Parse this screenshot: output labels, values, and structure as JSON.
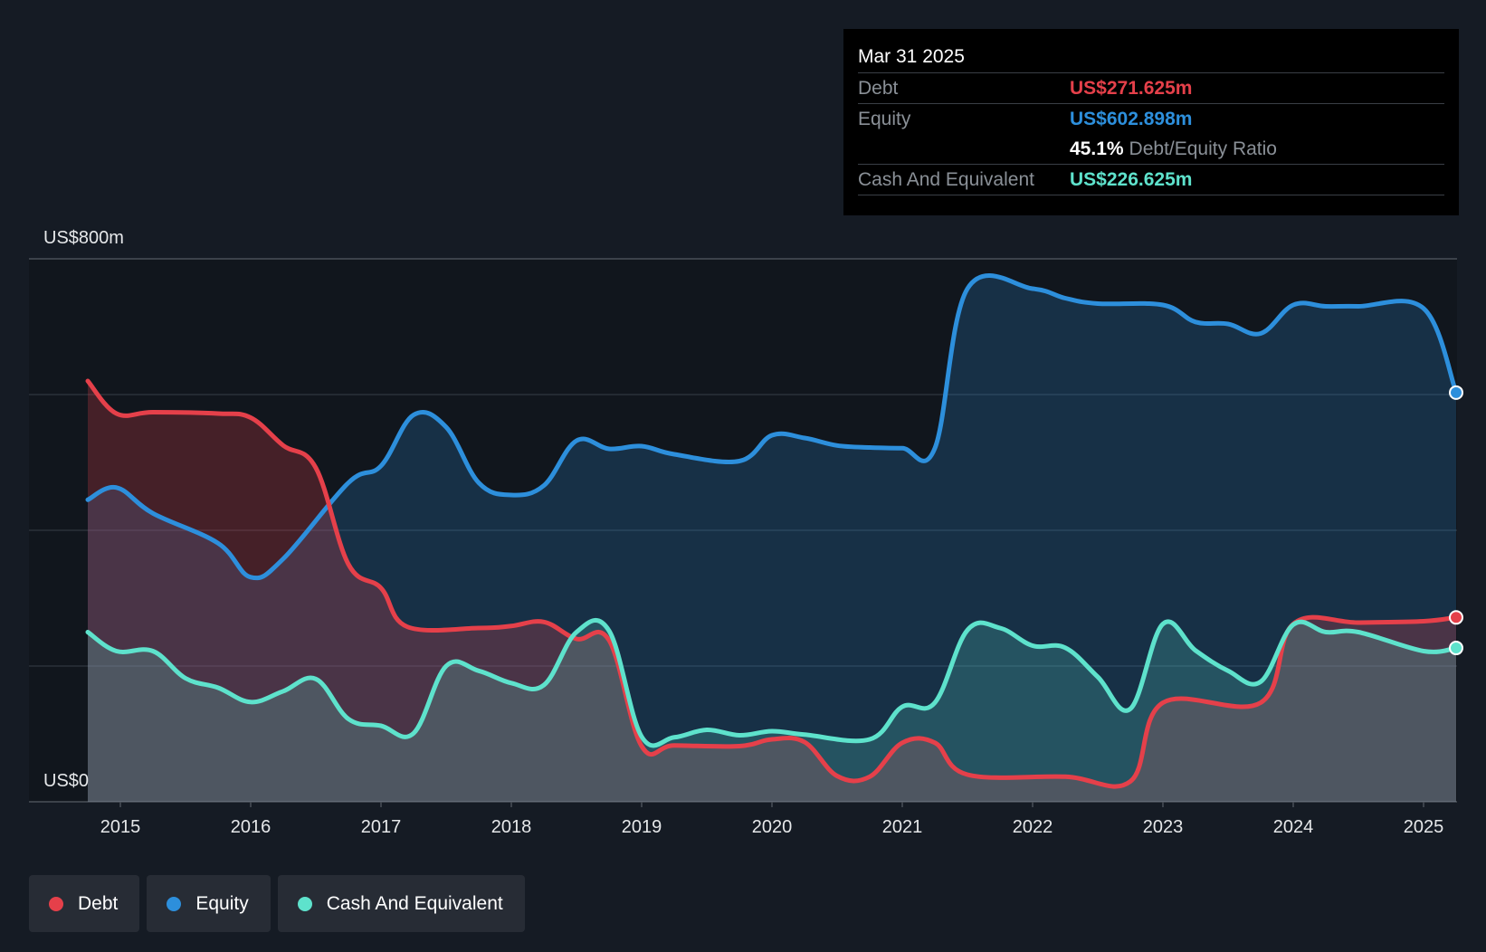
{
  "chart_data": {
    "type": "area",
    "y_axis": {
      "unit_prefix": "US$",
      "ylim": [
        0,
        800
      ],
      "top_label": "US$800m",
      "bottom_label": "US$0"
    },
    "x_axis": {
      "ticks": [
        "2015",
        "2016",
        "2017",
        "2018",
        "2019",
        "2020",
        "2021",
        "2022",
        "2023",
        "2024",
        "2025"
      ]
    },
    "grid": true,
    "legend_position": "bottom-left",
    "series": [
      {
        "name": "Debt",
        "color": "#e5404a",
        "points": [
          [
            2014.75,
            620
          ],
          [
            2014.97,
            572
          ],
          [
            2015.25,
            574
          ],
          [
            2015.75,
            572
          ],
          [
            2016.0,
            566
          ],
          [
            2016.25,
            525
          ],
          [
            2016.5,
            492
          ],
          [
            2016.75,
            350
          ],
          [
            2017.0,
            315
          ],
          [
            2017.2,
            258
          ],
          [
            2017.75,
            256
          ],
          [
            2018.0,
            259
          ],
          [
            2018.25,
            265
          ],
          [
            2018.5,
            240
          ],
          [
            2018.75,
            238
          ],
          [
            2019.0,
            82
          ],
          [
            2019.25,
            83
          ],
          [
            2019.75,
            82
          ],
          [
            2020.0,
            92
          ],
          [
            2020.25,
            88
          ],
          [
            2020.5,
            38
          ],
          [
            2020.75,
            37
          ],
          [
            2021.0,
            87
          ],
          [
            2021.25,
            87
          ],
          [
            2021.5,
            40
          ],
          [
            2022.25,
            37
          ],
          [
            2022.75,
            30
          ],
          [
            2023.0,
            146
          ],
          [
            2023.75,
            146
          ],
          [
            2024.0,
            262
          ],
          [
            2024.5,
            264
          ],
          [
            2025.0,
            266
          ],
          [
            2025.25,
            271.625
          ]
        ]
      },
      {
        "name": "Equity",
        "color": "#2d8fdc",
        "points": [
          [
            2014.75,
            445
          ],
          [
            2014.97,
            463
          ],
          [
            2015.25,
            425
          ],
          [
            2015.75,
            381
          ],
          [
            2016.0,
            331
          ],
          [
            2016.25,
            358
          ],
          [
            2016.75,
            470
          ],
          [
            2017.0,
            495
          ],
          [
            2017.25,
            570
          ],
          [
            2017.5,
            552
          ],
          [
            2017.75,
            470
          ],
          [
            2018.0,
            452
          ],
          [
            2018.25,
            466
          ],
          [
            2018.5,
            532
          ],
          [
            2018.75,
            520
          ],
          [
            2019.0,
            524
          ],
          [
            2019.25,
            512
          ],
          [
            2019.75,
            502
          ],
          [
            2020.0,
            540
          ],
          [
            2020.25,
            536
          ],
          [
            2020.5,
            525
          ],
          [
            2020.75,
            522
          ],
          [
            2021.0,
            521
          ],
          [
            2021.25,
            521
          ],
          [
            2021.5,
            756
          ],
          [
            2022.0,
            756
          ],
          [
            2022.25,
            742
          ],
          [
            2022.5,
            734
          ],
          [
            2023.0,
            732
          ],
          [
            2023.25,
            707
          ],
          [
            2023.5,
            704
          ],
          [
            2023.75,
            690
          ],
          [
            2024.0,
            732
          ],
          [
            2024.25,
            730
          ],
          [
            2024.5,
            730
          ],
          [
            2025.0,
            727
          ],
          [
            2025.25,
            602.898
          ]
        ]
      },
      {
        "name": "Cash And Equivalent",
        "color": "#5ee2cc",
        "points": [
          [
            2014.75,
            250
          ],
          [
            2014.97,
            222
          ],
          [
            2015.25,
            222
          ],
          [
            2015.5,
            182
          ],
          [
            2015.75,
            168
          ],
          [
            2016.0,
            147
          ],
          [
            2016.25,
            163
          ],
          [
            2016.5,
            181
          ],
          [
            2016.75,
            122
          ],
          [
            2017.0,
            112
          ],
          [
            2017.25,
            101
          ],
          [
            2017.5,
            200
          ],
          [
            2017.75,
            193
          ],
          [
            2018.0,
            175
          ],
          [
            2018.25,
            172
          ],
          [
            2018.5,
            250
          ],
          [
            2018.75,
            252
          ],
          [
            2019.0,
            96
          ],
          [
            2019.25,
            95
          ],
          [
            2019.5,
            106
          ],
          [
            2019.75,
            98
          ],
          [
            2020.0,
            104
          ],
          [
            2020.25,
            99
          ],
          [
            2020.75,
            92
          ],
          [
            2021.0,
            140
          ],
          [
            2021.25,
            146
          ],
          [
            2021.5,
            253
          ],
          [
            2021.75,
            256
          ],
          [
            2022.0,
            230
          ],
          [
            2022.25,
            227
          ],
          [
            2022.5,
            184
          ],
          [
            2022.75,
            137
          ],
          [
            2023.0,
            262
          ],
          [
            2023.25,
            223
          ],
          [
            2023.5,
            193
          ],
          [
            2023.75,
            177
          ],
          [
            2024.0,
            261
          ],
          [
            2024.25,
            250
          ],
          [
            2024.5,
            250
          ],
          [
            2025.0,
            222
          ],
          [
            2025.25,
            226.625
          ]
        ]
      }
    ]
  },
  "tooltip": {
    "date": "Mar 31 2025",
    "debt_label": "Debt",
    "debt_value": "US$271.625m",
    "equity_label": "Equity",
    "equity_value": "US$602.898m",
    "ratio_value": "45.1%",
    "ratio_label": "Debt/Equity Ratio",
    "cash_label": "Cash And Equivalent",
    "cash_value": "US$226.625m"
  },
  "legend": {
    "items": [
      {
        "label": "Debt",
        "color": "#e5404a"
      },
      {
        "label": "Equity",
        "color": "#2d8fdc"
      },
      {
        "label": "Cash And Equivalent",
        "color": "#5ee2cc"
      }
    ]
  }
}
